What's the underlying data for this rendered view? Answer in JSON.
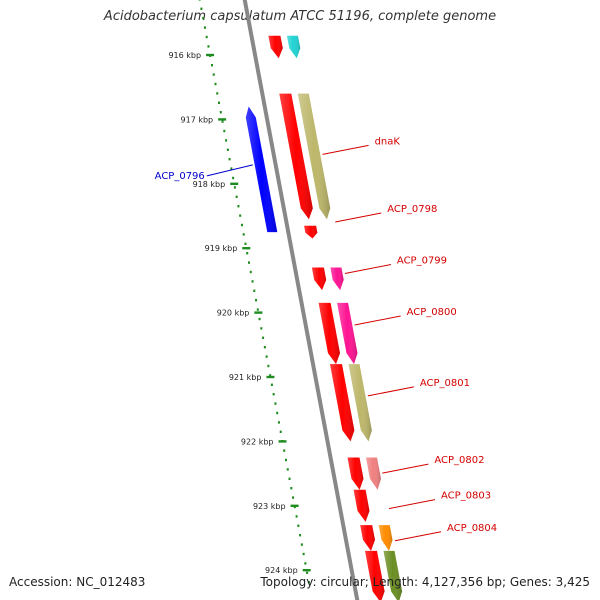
{
  "title": "Acidobacterium capsulatum ATCC 51196, complete genome",
  "footer": {
    "accession": "Accession: NC_012483",
    "summary": "Topology: circular; Length: 4,127,356 bp; Genes: 3,425"
  },
  "scale": {
    "unit": "kbp",
    "ticks": [
      916,
      917,
      918,
      919,
      920,
      921,
      922,
      923,
      924
    ],
    "tick_labels": [
      "916 kbp",
      "917 kbp",
      "918 kbp",
      "919 kbp",
      "920 kbp",
      "921 kbp",
      "922 kbp",
      "923 kbp",
      "924 kbp"
    ]
  },
  "colors": {
    "backbone": "#888888",
    "scale_dots": "#1e8c1e",
    "red": "#ff0000",
    "cyan": "#22d3d3",
    "khaki": "#bdb76b",
    "magenta": "#ff1493",
    "pink": "#f08080",
    "orange": "#ff8c00",
    "olive": "#6b8e23",
    "blue": "#0000ff",
    "label_red": "#d40000",
    "label_blue": "#0000cc"
  },
  "genes": [
    {
      "label": "",
      "track": "inner",
      "strand": "+",
      "color": "red",
      "start": 915.7,
      "end": 916.05
    },
    {
      "label": "",
      "track": "outer",
      "strand": "+",
      "color": "cyan",
      "start": 915.7,
      "end": 916.05
    },
    {
      "label": "ACP_0796",
      "track": "left",
      "strand": "-",
      "color": "blue",
      "start": 916.8,
      "end": 918.75,
      "label_side": "left",
      "label_at": 917.8
    },
    {
      "label": "dnaK",
      "track": "inner",
      "strand": "+",
      "color": "red",
      "start": 916.6,
      "end": 918.55,
      "label_side": "right",
      "label_at": 917.45
    },
    {
      "label": "",
      "track": "outer",
      "strand": "+",
      "color": "khaki",
      "start": 916.6,
      "end": 918.55
    },
    {
      "label": "ACP_0798",
      "track": "inner",
      "strand": "+",
      "color": "red",
      "start": 918.65,
      "end": 918.85,
      "label_side": "right",
      "label_at": 918.5
    },
    {
      "label": "",
      "track": "inner",
      "strand": "+",
      "color": "red",
      "start": 919.3,
      "end": 919.65
    },
    {
      "label": "ACP_0799",
      "track": "outer",
      "strand": "+",
      "color": "magenta",
      "start": 919.3,
      "end": 919.65,
      "label_side": "right",
      "label_at": 919.3
    },
    {
      "label": "",
      "track": "inner",
      "strand": "+",
      "color": "red",
      "start": 919.85,
      "end": 920.8
    },
    {
      "label": "ACP_0800",
      "track": "outer",
      "strand": "+",
      "color": "magenta",
      "start": 919.85,
      "end": 920.8,
      "label_side": "right",
      "label_at": 920.1
    },
    {
      "label": "",
      "track": "inner",
      "strand": "+",
      "color": "red",
      "start": 920.8,
      "end": 922.0
    },
    {
      "label": "ACP_0801",
      "track": "outer",
      "strand": "+",
      "color": "khaki",
      "start": 920.8,
      "end": 922.0,
      "label_side": "right",
      "label_at": 921.2
    },
    {
      "label": "",
      "track": "inner",
      "strand": "+",
      "color": "red",
      "start": 922.25,
      "end": 922.75
    },
    {
      "label": "ACP_0802",
      "track": "outer",
      "strand": "+",
      "color": "pink",
      "start": 922.25,
      "end": 922.75,
      "label_side": "right",
      "label_at": 922.4
    },
    {
      "label": "ACP_0803",
      "track": "inner",
      "strand": "+",
      "color": "red",
      "start": 922.75,
      "end": 923.25,
      "label_side": "right",
      "label_at": 922.95
    },
    {
      "label": "",
      "track": "inner",
      "strand": "+",
      "color": "red",
      "start": 923.3,
      "end": 923.7
    },
    {
      "label": "ACP_0804",
      "track": "outer",
      "strand": "+",
      "color": "orange",
      "start": 923.3,
      "end": 923.7,
      "label_side": "right",
      "label_at": 923.45
    },
    {
      "label": "",
      "track": "inner",
      "strand": "+",
      "color": "red",
      "start": 923.7,
      "end": 924.5
    },
    {
      "label": "",
      "track": "outer",
      "strand": "+",
      "color": "olive",
      "start": 923.7,
      "end": 924.5
    }
  ]
}
